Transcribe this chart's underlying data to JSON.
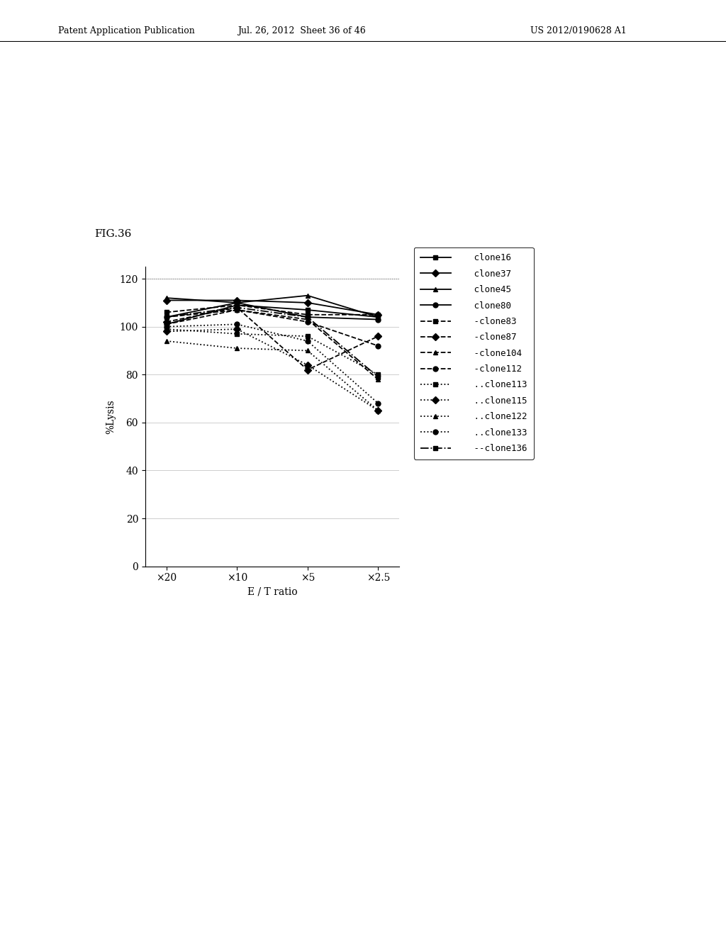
{
  "x_labels": [
    "×20",
    "×10",
    "×5",
    "×2.5"
  ],
  "x_values": [
    0,
    1,
    2,
    3
  ],
  "xlabel": "E / T ratio",
  "ylabel": "%Lysis",
  "ylim": [
    0,
    125
  ],
  "yticks": [
    0,
    20,
    40,
    60,
    80,
    100,
    120
  ],
  "fig_label": "FIG.36",
  "header_left": "Patent Application Publication",
  "header_center": "Jul. 26, 2012  Sheet 36 of 46",
  "header_right": "US 2012/0190628 A1",
  "series": [
    {
      "name": "clone16",
      "values": [
        101,
        109,
        107,
        104
      ],
      "linestyle": "solid",
      "marker": "s",
      "color": "#000000",
      "legend_label": "   clone16"
    },
    {
      "name": "clone37",
      "values": [
        111,
        111,
        110,
        105
      ],
      "linestyle": "solid",
      "marker": "D",
      "color": "#000000",
      "legend_label": "   clone37"
    },
    {
      "name": "clone45",
      "values": [
        112,
        110,
        113,
        104
      ],
      "linestyle": "solid",
      "marker": "^",
      "color": "#000000",
      "legend_label": "   clone45"
    },
    {
      "name": "clone80",
      "values": [
        104,
        110,
        104,
        103
      ],
      "linestyle": "solid",
      "marker": "o",
      "color": "#000000",
      "legend_label": "   clone80"
    },
    {
      "name": "clone83",
      "values": [
        106,
        109,
        105,
        105
      ],
      "linestyle": "dashed",
      "marker": "s",
      "color": "#000000",
      "legend_label": "   -clone83"
    },
    {
      "name": "clone87",
      "values": [
        102,
        108,
        82,
        96
      ],
      "linestyle": "dashed",
      "marker": "D",
      "color": "#000000",
      "legend_label": "   -clone87"
    },
    {
      "name": "clone104",
      "values": [
        104,
        107,
        103,
        78
      ],
      "linestyle": "dashed",
      "marker": "^",
      "color": "#000000",
      "legend_label": "   -clone104"
    },
    {
      "name": "clone112",
      "values": [
        101,
        107,
        102,
        92
      ],
      "linestyle": "dashed",
      "marker": "o",
      "color": "#000000",
      "legend_label": "   -clone112"
    },
    {
      "name": "clone113",
      "values": [
        99,
        97,
        96,
        80
      ],
      "linestyle": "dotted",
      "marker": "s",
      "color": "#000000",
      "legend_label": "   ..clone113"
    },
    {
      "name": "clone115",
      "values": [
        98,
        99,
        84,
        65
      ],
      "linestyle": "dotted",
      "marker": "D",
      "color": "#000000",
      "legend_label": "   ..clone115"
    },
    {
      "name": "clone122",
      "values": [
        94,
        91,
        90,
        65
      ],
      "linestyle": "dotted",
      "marker": "^",
      "color": "#000000",
      "legend_label": "   ..clone122"
    },
    {
      "name": "clone133",
      "values": [
        100,
        101,
        94,
        68
      ],
      "linestyle": "dotted",
      "marker": "o",
      "color": "#000000",
      "legend_label": "   ..clone133"
    },
    {
      "name": "clone136",
      "values": [
        104,
        108,
        104,
        79
      ],
      "linestyle": "dashdot",
      "marker": "s",
      "color": "#000000",
      "legend_label": "   --clone136"
    }
  ]
}
